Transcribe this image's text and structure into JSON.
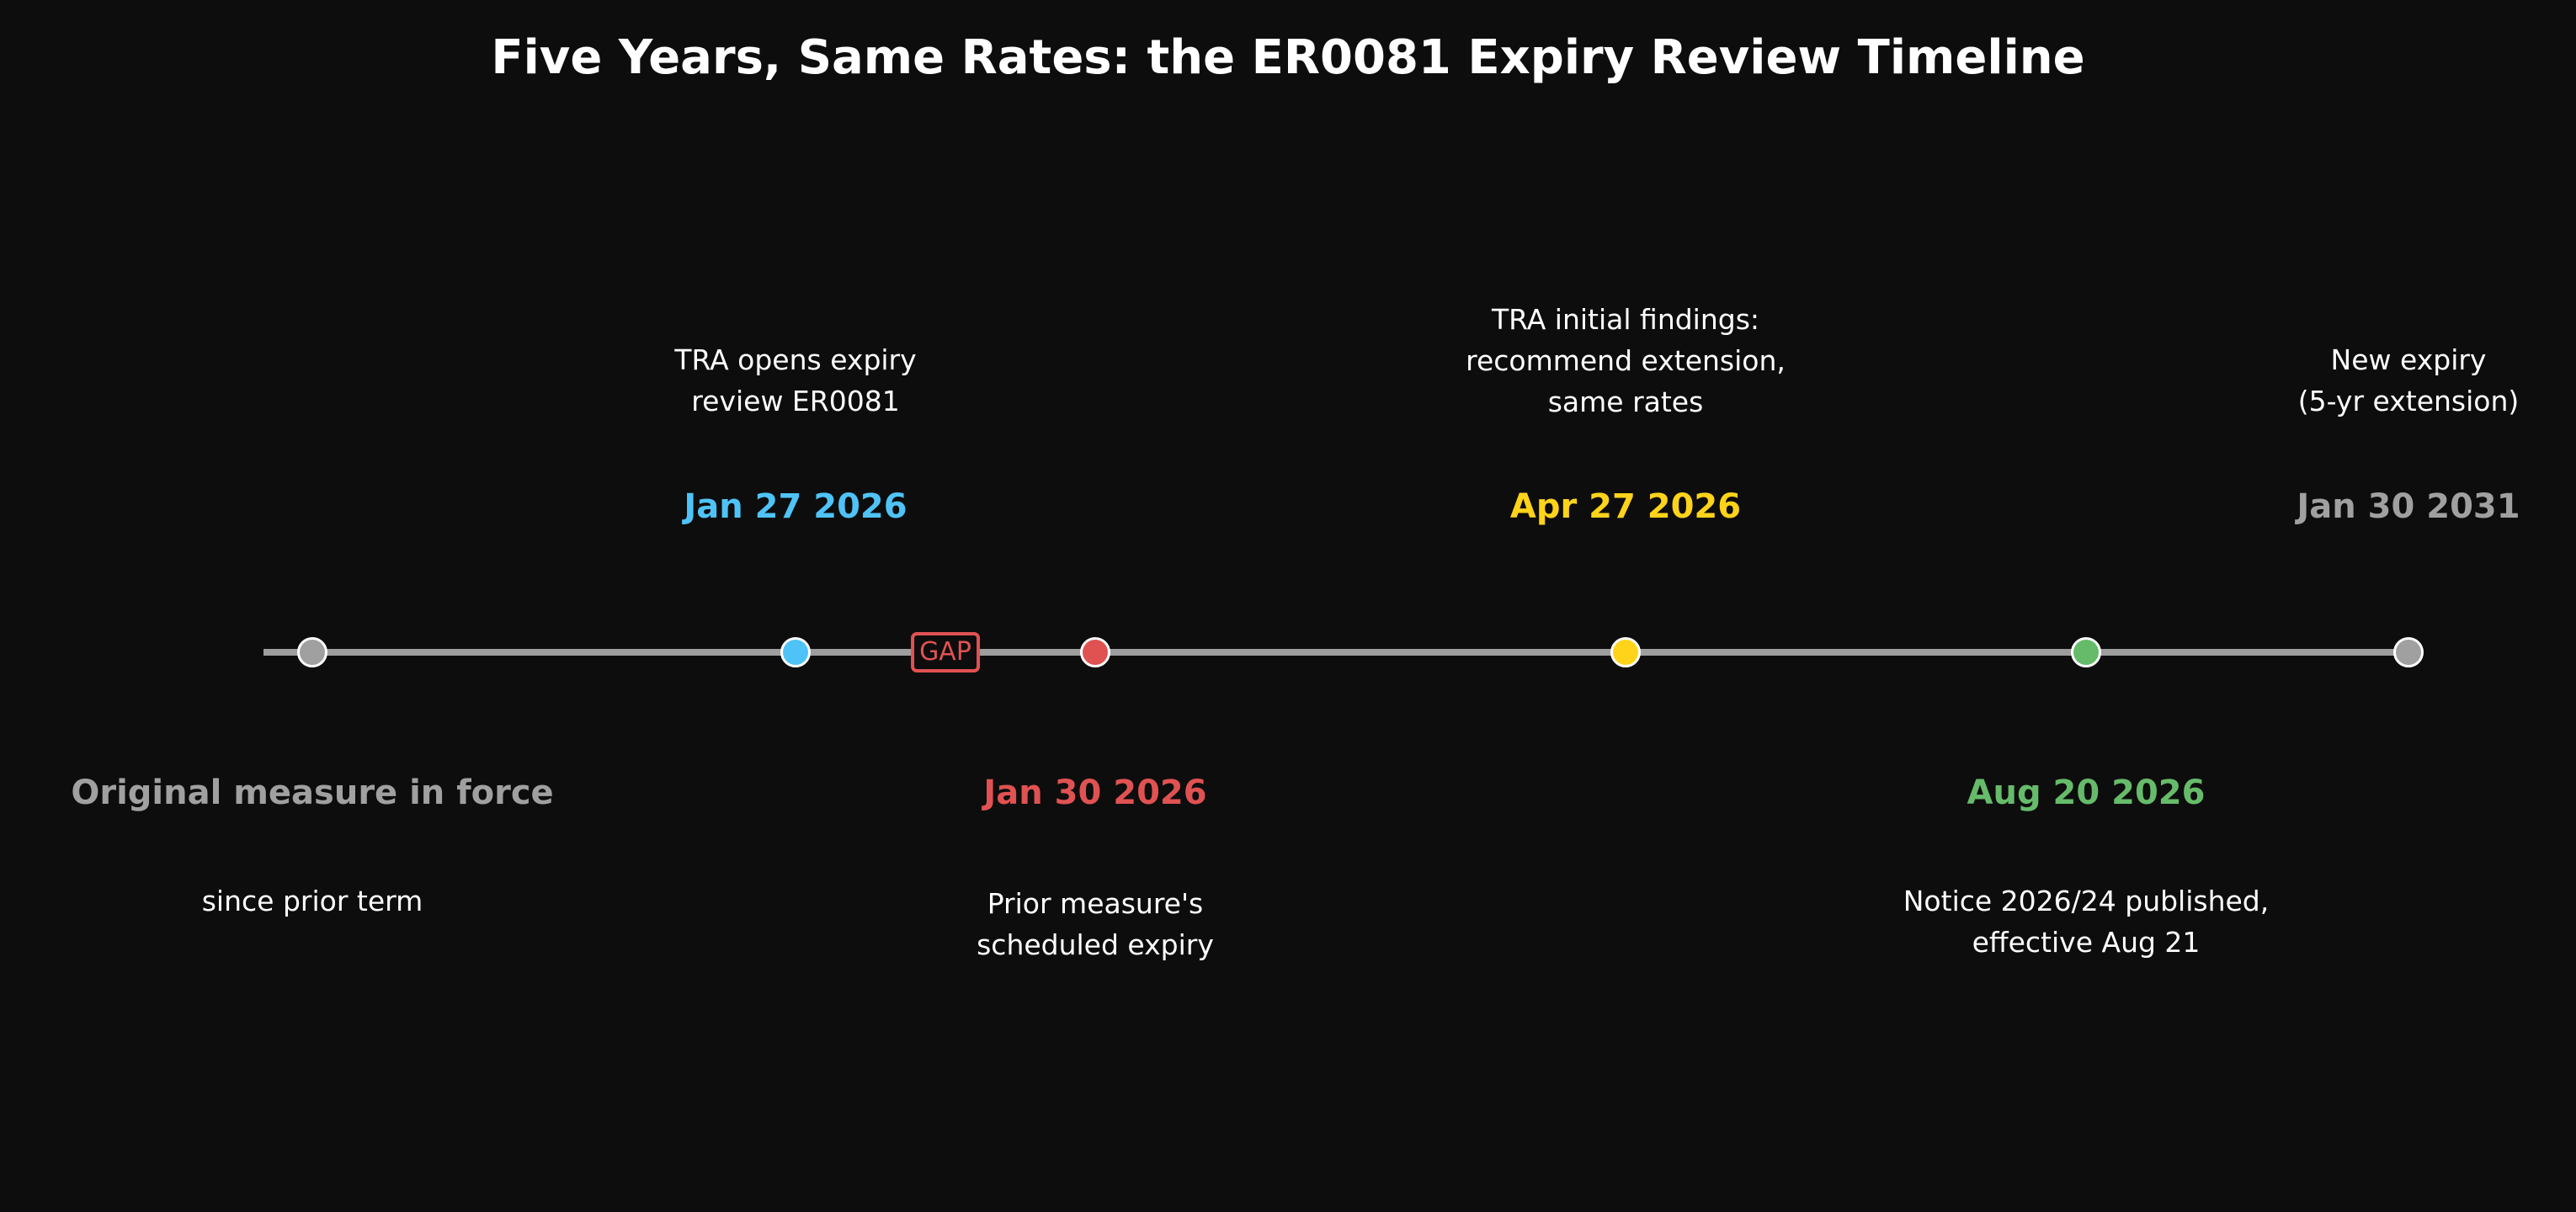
{
  "title": "Five Years, Same Rates: the ER0081 Expiry Review Timeline",
  "colors": {
    "background": "#0d0d0d",
    "line": "#9e9e9e",
    "gray": "#a0a0a0",
    "blue": "#4fc3f7",
    "red": "#e05252",
    "yellow": "#ffd31a",
    "green": "#66bb6a"
  },
  "gap_label": "GAP",
  "events": [
    {
      "date": "Original measure in force",
      "description": "since prior term",
      "color": "#a0a0a0"
    },
    {
      "date": "Jan 27 2026",
      "description": "TRA opens expiry\nreview ER0081",
      "color": "#4fc3f7"
    },
    {
      "date": "Jan 30 2026",
      "description": "Prior measure's\nscheduled expiry",
      "color": "#e05252"
    },
    {
      "date": "Apr 27 2026",
      "description": "TRA initial findings:\nrecommend extension,\nsame rates",
      "color": "#ffd31a"
    },
    {
      "date": "Aug 20 2026",
      "description": "Notice 2026/24 published,\neffective Aug 21",
      "color": "#66bb6a"
    },
    {
      "date": "Jan 30 2031",
      "description": "New expiry\n(5-yr extension)",
      "color": "#a0a0a0"
    }
  ]
}
